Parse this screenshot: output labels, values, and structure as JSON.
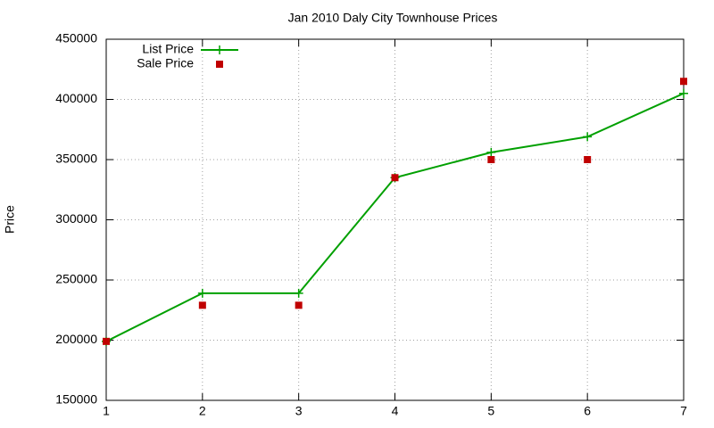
{
  "chart_data": {
    "type": "line",
    "title": "Jan 2010 Daly City Townhouse Prices",
    "y_label": "Price",
    "x": [
      1,
      2,
      3,
      4,
      5,
      6,
      7
    ],
    "series": [
      {
        "name": "List Price",
        "color": "#00a000",
        "style": "lines+points",
        "values": [
          199000,
          239000,
          239000,
          335000,
          356000,
          369000,
          405000
        ]
      },
      {
        "name": "Sale Price",
        "color": "#c00000",
        "style": "points",
        "values": [
          199000,
          229000,
          229000,
          335000,
          350000,
          350000,
          415000
        ]
      }
    ],
    "xlim": [
      1,
      7
    ],
    "xticks": [
      1,
      2,
      3,
      4,
      5,
      6,
      7
    ],
    "ylim": [
      150000,
      450000
    ],
    "yticks": [
      150000,
      200000,
      250000,
      300000,
      350000,
      400000,
      450000
    ],
    "grid": true,
    "legend": "top-left"
  }
}
